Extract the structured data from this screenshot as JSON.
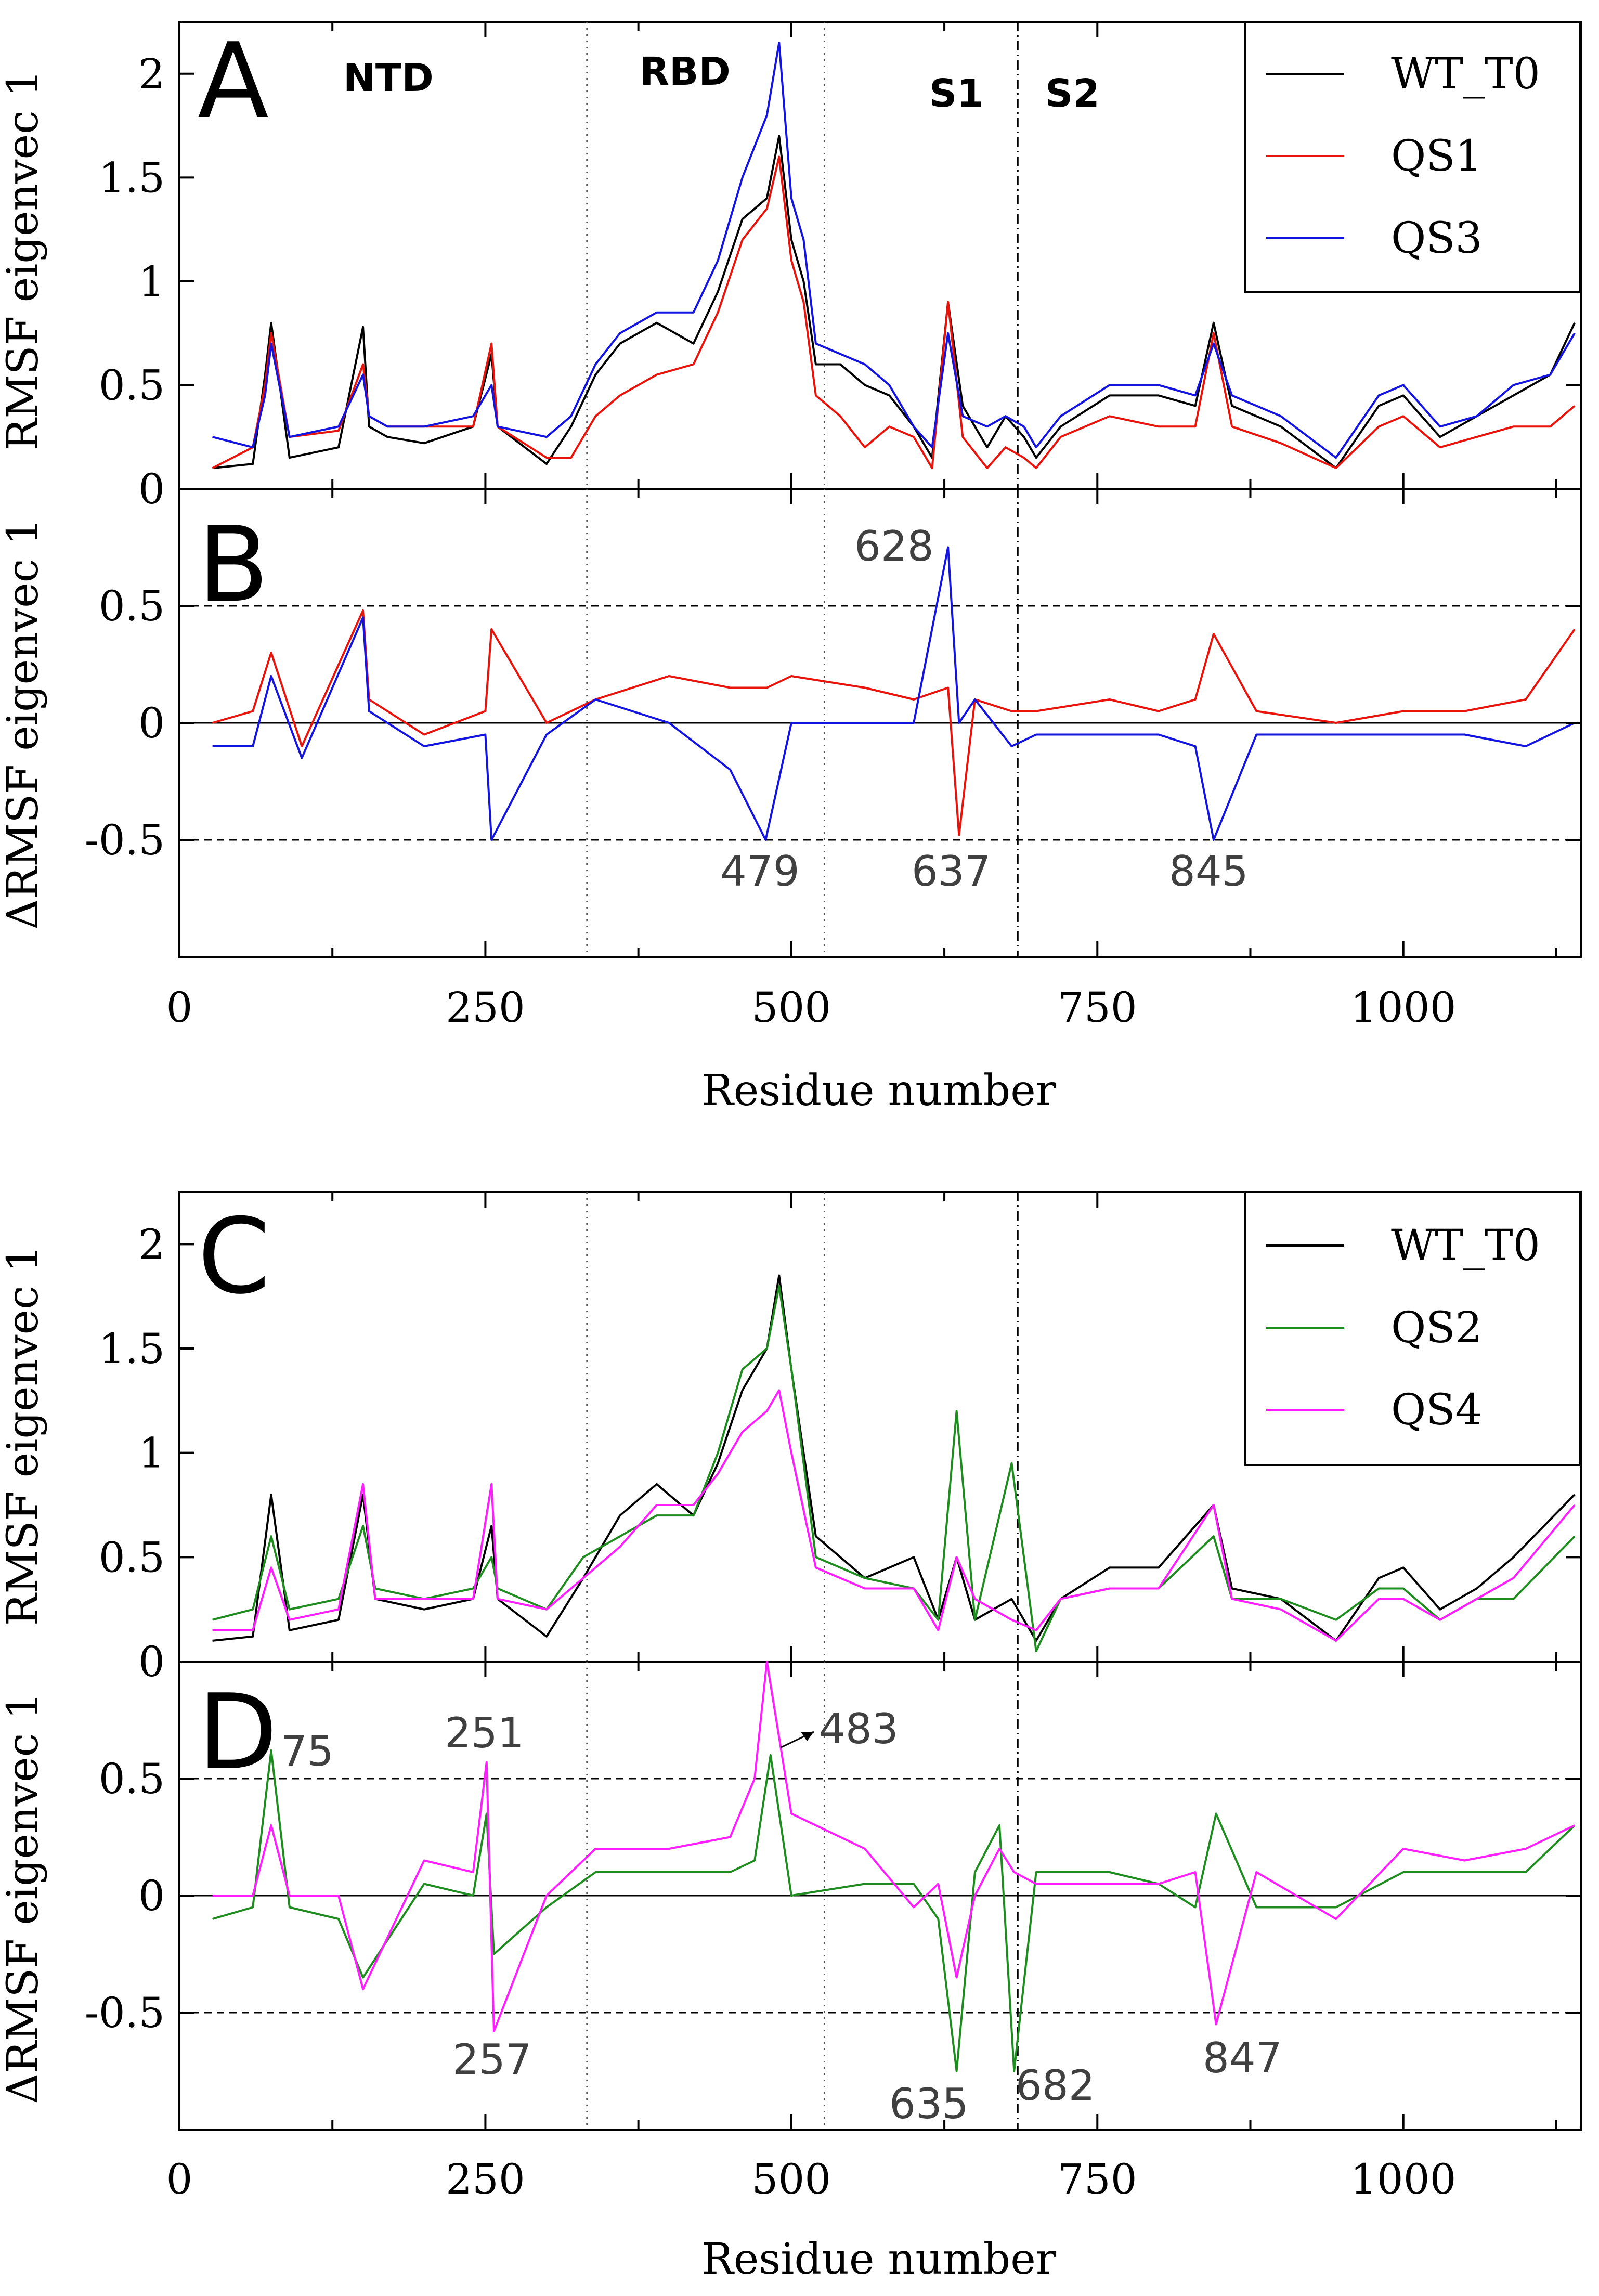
{
  "chart_data": [
    {
      "panel": "A",
      "type": "line",
      "ylabel": "RMSF eigenvec 1",
      "xlim": [
        0,
        1145
      ],
      "ylim": [
        0,
        2.25
      ],
      "yticks": [
        "0",
        "0.5",
        "1",
        "1.5",
        "2"
      ],
      "region_labels": [
        "NTD",
        "RBD",
        "S1",
        "S2"
      ],
      "series": [
        {
          "name": "WT_T0",
          "color": "#000000",
          "x": [
            27,
            60,
            70,
            75,
            90,
            130,
            150,
            155,
            170,
            200,
            240,
            255,
            260,
            300,
            320,
            340,
            360,
            390,
            420,
            440,
            460,
            480,
            490,
            500,
            510,
            520,
            540,
            560,
            580,
            600,
            615,
            628,
            640,
            660,
            675,
            690,
            700,
            720,
            760,
            800,
            830,
            845,
            860,
            900,
            945,
            980,
            1000,
            1030,
            1060,
            1090,
            1120,
            1140
          ],
          "values": [
            0.1,
            0.12,
            0.55,
            0.8,
            0.15,
            0.2,
            0.78,
            0.3,
            0.25,
            0.22,
            0.3,
            0.65,
            0.3,
            0.12,
            0.3,
            0.55,
            0.7,
            0.8,
            0.7,
            0.95,
            1.3,
            1.4,
            1.7,
            1.2,
            1.0,
            0.6,
            0.6,
            0.5,
            0.45,
            0.3,
            0.15,
            0.9,
            0.4,
            0.2,
            0.35,
            0.25,
            0.15,
            0.3,
            0.45,
            0.45,
            0.4,
            0.8,
            0.4,
            0.3,
            0.1,
            0.4,
            0.45,
            0.25,
            0.35,
            0.45,
            0.55,
            0.8
          ]
        },
        {
          "name": "QS1",
          "color": "#e8140c",
          "x": [
            27,
            60,
            70,
            75,
            90,
            130,
            150,
            155,
            170,
            200,
            240,
            255,
            260,
            300,
            320,
            340,
            360,
            390,
            420,
            440,
            460,
            480,
            490,
            500,
            510,
            520,
            540,
            560,
            580,
            600,
            615,
            628,
            640,
            660,
            675,
            690,
            700,
            720,
            760,
            800,
            830,
            845,
            860,
            900,
            945,
            980,
            1000,
            1030,
            1060,
            1090,
            1120,
            1140
          ],
          "values": [
            0.1,
            0.2,
            0.5,
            0.75,
            0.25,
            0.28,
            0.6,
            0.35,
            0.3,
            0.3,
            0.3,
            0.7,
            0.3,
            0.15,
            0.15,
            0.35,
            0.45,
            0.55,
            0.6,
            0.85,
            1.2,
            1.35,
            1.6,
            1.1,
            0.9,
            0.45,
            0.35,
            0.2,
            0.3,
            0.25,
            0.1,
            0.9,
            0.25,
            0.1,
            0.2,
            0.15,
            0.1,
            0.25,
            0.35,
            0.3,
            0.3,
            0.75,
            0.3,
            0.22,
            0.1,
            0.3,
            0.35,
            0.2,
            0.25,
            0.3,
            0.3,
            0.4
          ]
        },
        {
          "name": "QS3",
          "color": "#1414e0",
          "x": [
            27,
            60,
            70,
            75,
            90,
            130,
            150,
            155,
            170,
            200,
            240,
            255,
            260,
            300,
            320,
            340,
            360,
            390,
            420,
            440,
            460,
            480,
            490,
            500,
            510,
            520,
            540,
            560,
            580,
            600,
            615,
            628,
            640,
            660,
            675,
            690,
            700,
            720,
            760,
            800,
            830,
            845,
            860,
            900,
            945,
            980,
            1000,
            1030,
            1060,
            1090,
            1120,
            1140
          ],
          "values": [
            0.25,
            0.2,
            0.45,
            0.7,
            0.25,
            0.3,
            0.55,
            0.35,
            0.3,
            0.3,
            0.35,
            0.5,
            0.3,
            0.25,
            0.35,
            0.6,
            0.75,
            0.85,
            0.85,
            1.1,
            1.5,
            1.8,
            2.15,
            1.4,
            1.2,
            0.7,
            0.65,
            0.6,
            0.5,
            0.3,
            0.2,
            0.75,
            0.35,
            0.3,
            0.35,
            0.3,
            0.2,
            0.35,
            0.5,
            0.5,
            0.45,
            0.7,
            0.45,
            0.35,
            0.15,
            0.45,
            0.5,
            0.3,
            0.35,
            0.5,
            0.55,
            0.75
          ]
        }
      ]
    },
    {
      "panel": "B",
      "type": "line",
      "ylabel": "ΔRMSF eigenvec 1",
      "xlim": [
        0,
        1145
      ],
      "ylim": [
        -1.0,
        1.0
      ],
      "yticks": [
        "-0.5",
        "0",
        "0.5"
      ],
      "reference_lines": [
        -0.5,
        0.5
      ],
      "annotations": [
        "628",
        "479",
        "637",
        "845"
      ],
      "series": [
        {
          "name": "QS1 - WT_T0",
          "color": "#e8140c",
          "x": [
            27,
            60,
            75,
            100,
            150,
            155,
            200,
            250,
            255,
            300,
            340,
            400,
            450,
            480,
            500,
            560,
            600,
            628,
            637,
            650,
            680,
            700,
            760,
            800,
            830,
            845,
            880,
            945,
            1000,
            1050,
            1100,
            1140
          ],
          "values": [
            0.0,
            0.05,
            0.3,
            -0.1,
            0.48,
            0.1,
            -0.05,
            0.05,
            0.4,
            0.0,
            0.1,
            0.2,
            0.15,
            0.15,
            0.2,
            0.15,
            0.1,
            0.15,
            -0.48,
            0.1,
            0.05,
            0.05,
            0.1,
            0.05,
            0.1,
            0.38,
            0.05,
            0.0,
            0.05,
            0.05,
            0.1,
            0.4
          ]
        },
        {
          "name": "QS3 - WT_T0",
          "color": "#1414e0",
          "x": [
            27,
            60,
            75,
            100,
            150,
            155,
            200,
            250,
            255,
            300,
            340,
            400,
            450,
            479,
            500,
            560,
            600,
            628,
            637,
            650,
            680,
            700,
            760,
            800,
            830,
            845,
            880,
            945,
            1000,
            1050,
            1100,
            1140
          ],
          "values": [
            -0.1,
            -0.1,
            0.2,
            -0.15,
            0.45,
            0.05,
            -0.1,
            -0.05,
            -0.5,
            -0.05,
            0.1,
            0.0,
            -0.2,
            -0.5,
            0.0,
            0.0,
            0.0,
            0.75,
            0.0,
            0.1,
            -0.1,
            -0.05,
            -0.05,
            -0.05,
            -0.1,
            -0.5,
            -0.05,
            -0.05,
            -0.05,
            -0.05,
            -0.1,
            0.0
          ]
        }
      ]
    },
    {
      "panel": "C",
      "type": "line",
      "ylabel": "RMSF eigenvec 1",
      "xlim": [
        0,
        1145
      ],
      "ylim": [
        0,
        2.25
      ],
      "yticks": [
        "0",
        "0.5",
        "1",
        "1.5",
        "2"
      ],
      "series": [
        {
          "name": "WT_T0",
          "color": "#000000",
          "x": [
            27,
            60,
            75,
            90,
            130,
            150,
            160,
            200,
            240,
            255,
            260,
            300,
            330,
            360,
            390,
            420,
            440,
            460,
            480,
            490,
            500,
            520,
            540,
            560,
            600,
            620,
            635,
            650,
            680,
            700,
            720,
            760,
            800,
            845,
            860,
            900,
            945,
            980,
            1000,
            1030,
            1060,
            1090,
            1140
          ],
          "values": [
            0.1,
            0.12,
            0.8,
            0.15,
            0.2,
            0.8,
            0.3,
            0.25,
            0.3,
            0.65,
            0.3,
            0.12,
            0.4,
            0.7,
            0.85,
            0.7,
            0.95,
            1.3,
            1.5,
            1.85,
            1.4,
            0.6,
            0.5,
            0.4,
            0.5,
            0.2,
            0.5,
            0.2,
            0.3,
            0.1,
            0.3,
            0.45,
            0.45,
            0.75,
            0.35,
            0.3,
            0.1,
            0.4,
            0.45,
            0.25,
            0.35,
            0.5,
            0.8
          ]
        },
        {
          "name": "QS2",
          "color": "#1e8c1e",
          "x": [
            27,
            60,
            75,
            90,
            130,
            150,
            160,
            200,
            240,
            255,
            260,
            300,
            330,
            360,
            390,
            420,
            440,
            460,
            480,
            490,
            500,
            520,
            540,
            560,
            600,
            620,
            635,
            650,
            680,
            700,
            720,
            760,
            800,
            845,
            860,
            900,
            945,
            980,
            1000,
            1030,
            1060,
            1090,
            1140
          ],
          "values": [
            0.2,
            0.25,
            0.6,
            0.25,
            0.3,
            0.65,
            0.35,
            0.3,
            0.35,
            0.5,
            0.35,
            0.25,
            0.5,
            0.6,
            0.7,
            0.7,
            1.0,
            1.4,
            1.5,
            1.8,
            1.4,
            0.5,
            0.45,
            0.4,
            0.35,
            0.2,
            1.2,
            0.2,
            0.95,
            0.05,
            0.3,
            0.35,
            0.35,
            0.6,
            0.3,
            0.3,
            0.2,
            0.35,
            0.35,
            0.2,
            0.3,
            0.3,
            0.6
          ]
        },
        {
          "name": "QS4",
          "color": "#ff1eff",
          "x": [
            27,
            60,
            75,
            90,
            130,
            150,
            160,
            200,
            240,
            255,
            260,
            300,
            330,
            360,
            390,
            420,
            440,
            460,
            480,
            490,
            500,
            520,
            540,
            560,
            600,
            620,
            635,
            650,
            680,
            700,
            720,
            760,
            800,
            845,
            860,
            900,
            945,
            980,
            1000,
            1030,
            1060,
            1090,
            1140
          ],
          "values": [
            0.15,
            0.15,
            0.45,
            0.2,
            0.25,
            0.85,
            0.3,
            0.3,
            0.3,
            0.85,
            0.3,
            0.25,
            0.4,
            0.55,
            0.75,
            0.75,
            0.9,
            1.1,
            1.2,
            1.3,
            1.0,
            0.45,
            0.4,
            0.35,
            0.35,
            0.15,
            0.5,
            0.3,
            0.2,
            0.15,
            0.3,
            0.35,
            0.35,
            0.75,
            0.3,
            0.25,
            0.1,
            0.3,
            0.3,
            0.2,
            0.3,
            0.4,
            0.75
          ]
        }
      ]
    },
    {
      "panel": "D",
      "type": "line",
      "ylabel": "ΔRMSF eigenvec 1",
      "xlim": [
        0,
        1145
      ],
      "ylim": [
        -1.0,
        1.0
      ],
      "yticks": [
        "-0.5",
        "0",
        "0.5"
      ],
      "reference_lines": [
        -0.5,
        0.5
      ],
      "annotations": [
        "75",
        "251",
        "483",
        "257",
        "635",
        "682",
        "847"
      ],
      "series": [
        {
          "name": "QS2 - WT_T0",
          "color": "#1e8c1e",
          "x": [
            27,
            60,
            75,
            90,
            130,
            150,
            200,
            240,
            251,
            257,
            300,
            340,
            400,
            450,
            470,
            483,
            500,
            560,
            600,
            620,
            635,
            650,
            670,
            682,
            700,
            760,
            800,
            830,
            847,
            880,
            945,
            1000,
            1050,
            1100,
            1140
          ],
          "values": [
            -0.1,
            -0.05,
            0.62,
            -0.05,
            -0.1,
            -0.35,
            0.05,
            0.0,
            0.35,
            -0.25,
            -0.05,
            0.1,
            0.1,
            0.1,
            0.15,
            0.6,
            0.0,
            0.05,
            0.05,
            -0.1,
            -0.75,
            0.1,
            0.3,
            -0.75,
            0.1,
            0.1,
            0.05,
            -0.05,
            0.35,
            -0.05,
            -0.05,
            0.1,
            0.1,
            0.1,
            0.3
          ]
        },
        {
          "name": "QS4 - WT_T0",
          "color": "#ff1eff",
          "x": [
            27,
            60,
            75,
            90,
            130,
            150,
            200,
            240,
            251,
            257,
            300,
            340,
            400,
            450,
            470,
            480,
            500,
            560,
            600,
            620,
            635,
            650,
            670,
            682,
            700,
            760,
            800,
            830,
            847,
            880,
            945,
            1000,
            1050,
            1100,
            1140
          ],
          "values": [
            0.0,
            0.0,
            0.3,
            0.0,
            0.0,
            -0.4,
            0.15,
            0.1,
            0.57,
            -0.58,
            0.0,
            0.2,
            0.2,
            0.25,
            0.5,
            1.0,
            0.35,
            0.2,
            -0.05,
            0.05,
            -0.35,
            0.0,
            0.2,
            0.1,
            0.05,
            0.05,
            0.05,
            0.1,
            -0.55,
            0.1,
            -0.1,
            0.2,
            0.15,
            0.2,
            0.3
          ]
        }
      ]
    }
  ],
  "xaxis": {
    "xlabel": "Residue number",
    "ticks": [
      {
        "value": 0,
        "label": "0"
      },
      {
        "value": 250,
        "label": "250"
      },
      {
        "value": 500,
        "label": "500"
      },
      {
        "value": 750,
        "label": "750"
      },
      {
        "value": 1000,
        "label": "1000"
      }
    ],
    "domain_boundaries_dotted": [
      333,
      527
    ],
    "domain_boundary_dashdot": [
      685
    ]
  },
  "top_panel_letter": "A",
  "bottom_panel_letter": "B",
  "panel_letters": {
    "A": "A",
    "B": "B",
    "C": "C",
    "D": "D"
  },
  "region_labels": {
    "ntd": "NTD",
    "rbd": "RBD",
    "s1": "S1",
    "s2": "S2"
  },
  "annotations": {
    "b_628": "628",
    "b_479": "479",
    "b_637": "637",
    "b_845": "845",
    "d_75": "75",
    "d_251": "251",
    "d_483": "483",
    "d_257": "257",
    "d_635": "635",
    "d_682": "682",
    "d_847": "847"
  },
  "legend_top": [
    "WT_T0",
    "QS1",
    "QS3"
  ],
  "legend_bottom": [
    "WT_T0",
    "QS2",
    "QS4"
  ],
  "ylabels": {
    "rmsf": "RMSF eigenvec 1",
    "drmsf": "ΔRMSF eigenvec 1"
  },
  "xlabel": "Residue number"
}
